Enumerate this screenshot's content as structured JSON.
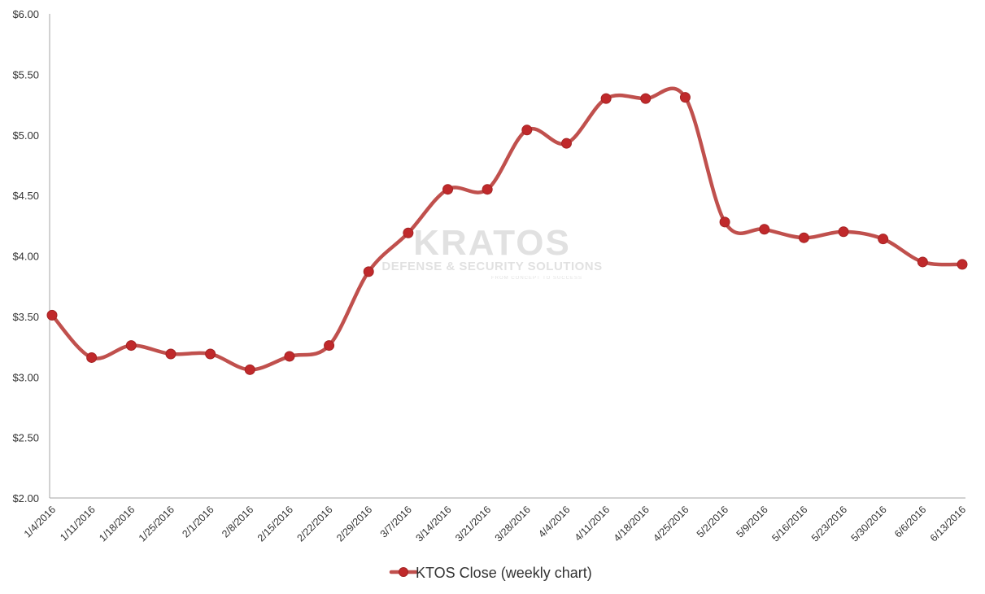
{
  "chart_data": {
    "type": "line",
    "title": "",
    "xlabel": "",
    "ylabel": "",
    "ylim": [
      2.0,
      6.0
    ],
    "y_ticks": [
      "$2.00",
      "$2.50",
      "$3.00",
      "$3.50",
      "$4.00",
      "$4.50",
      "$5.00",
      "$5.50",
      "$6.00"
    ],
    "grid": false,
    "smooth": true,
    "legend_position": "bottom",
    "categories": [
      "1/4/2016",
      "1/11/2016",
      "1/18/2016",
      "1/25/2016",
      "2/1/2016",
      "2/8/2016",
      "2/15/2016",
      "2/22/2016",
      "2/29/2016",
      "3/7/2016",
      "3/14/2016",
      "3/21/2016",
      "3/28/2016",
      "4/4/2016",
      "4/11/2016",
      "4/18/2016",
      "4/25/2016",
      "5/2/2016",
      "5/9/2016",
      "5/16/2016",
      "5/23/2016",
      "5/30/2016",
      "6/6/2016",
      "6/13/2016"
    ],
    "series": [
      {
        "name": "KTOS Close (weekly chart)",
        "color": "#c0504d",
        "marker_color": "#c0292b",
        "values": [
          3.51,
          3.16,
          3.26,
          3.19,
          3.19,
          3.06,
          3.17,
          3.26,
          3.87,
          4.19,
          4.55,
          4.55,
          5.04,
          4.93,
          5.3,
          5.3,
          5.31,
          4.28,
          4.22,
          4.15,
          4.2,
          4.14,
          3.95,
          3.93
        ]
      }
    ]
  },
  "watermark": {
    "logo_text": "KRATOS",
    "tagline": "DEFENSE & SECURITY SOLUTIONS",
    "small_line": "FROM CONCEPT TO SUCCESS"
  }
}
